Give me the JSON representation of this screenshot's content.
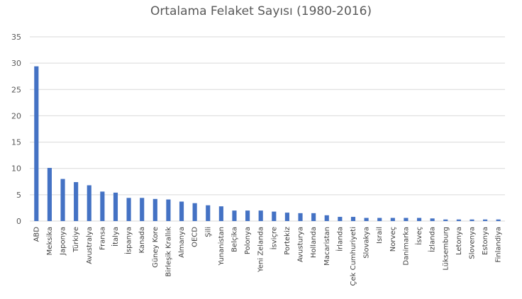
{
  "chart_data": {
    "type": "bar",
    "title": "Ortalama Felaket Sayısı (1980-2016)",
    "xlabel": "",
    "ylabel": "",
    "ylim": [
      0,
      35
    ],
    "yticks": [
      0,
      5,
      10,
      15,
      20,
      25,
      30,
      35
    ],
    "grid": true,
    "legend": "none",
    "bar_color": "#4472C4",
    "grid_color": "#D9D9D9",
    "categories": [
      "ABD",
      "Meksika",
      "Japonya",
      "Türkiye",
      "Avustralya",
      "Fransa",
      "İtalya",
      "İspanya",
      "Kanada",
      "Güney Kore",
      "Birleşik Krallık",
      "Almanya",
      "OECD",
      "Şili",
      "Yunanistan",
      "Belçika",
      "Polonya",
      "Yeni Zelanda",
      "İsviçre",
      "Portekiz",
      "Avusturya",
      "Hollanda",
      "Macaristan",
      "İrlanda",
      "Çek Cumhuriyeti",
      "Slovakya",
      "Israil",
      "Norveç",
      "Danimarka",
      "İsveç",
      "İzlanda",
      "Lüksemburg",
      "Letonya",
      "Slovenya",
      "Estonya",
      "Finlandiya"
    ],
    "values": [
      29.4,
      10.1,
      8.0,
      7.4,
      6.8,
      5.6,
      5.4,
      4.4,
      4.4,
      4.2,
      4.1,
      3.7,
      3.4,
      3.0,
      2.8,
      2.0,
      2.0,
      2.0,
      1.8,
      1.6,
      1.5,
      1.5,
      1.1,
      0.8,
      0.8,
      0.6,
      0.6,
      0.6,
      0.6,
      0.6,
      0.5,
      0.3,
      0.3,
      0.3,
      0.3,
      0.3
    ]
  }
}
